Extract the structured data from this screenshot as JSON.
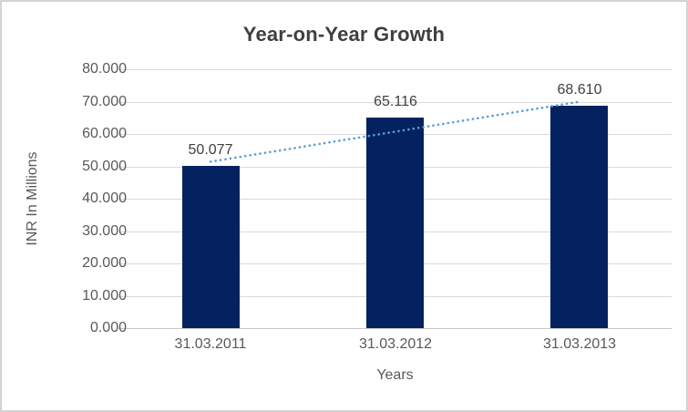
{
  "chart_data": {
    "type": "bar",
    "title": "Year-on-Year Growth",
    "xlabel": "Years",
    "ylabel": "INR In Millions",
    "categories": [
      "31.03.2011",
      "31.03.2012",
      "31.03.2013"
    ],
    "values": [
      50.077,
      65.116,
      68.61
    ],
    "data_labels": [
      "50.077",
      "65.116",
      "68.610"
    ],
    "yticks": [
      "80.000",
      "70.000",
      "60.000",
      "50.000",
      "40.000",
      "30.000",
      "20.000",
      "10.000",
      "0.000"
    ],
    "ylim": [
      0,
      80
    ],
    "grid": true,
    "legend": "none",
    "trendline": {
      "type": "linear",
      "style": "dotted"
    },
    "colors": {
      "bar": "#052260",
      "trendline": "#5b9bd5",
      "gridline": "#d9d9d9",
      "axis_line": "#c6c6c6",
      "title_text": "#3f3f3f",
      "tick_text": "#595959",
      "label_text": "#404040",
      "frame_border": "#d4d4d4",
      "background": "#ffffff"
    }
  }
}
